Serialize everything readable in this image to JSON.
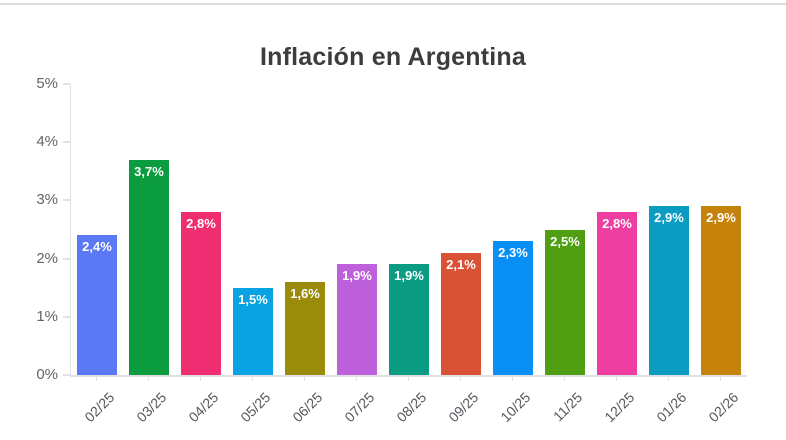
{
  "chart_data": {
    "type": "bar",
    "title": "Inflación en Argentina",
    "xlabel": "",
    "ylabel": "",
    "categories": [
      "02/25",
      "03/25",
      "04/25",
      "05/25",
      "06/25",
      "07/25",
      "08/25",
      "09/25",
      "10/25",
      "11/25",
      "12/25",
      "01/26",
      "02/26"
    ],
    "values": [
      2.4,
      3.7,
      2.8,
      1.5,
      1.6,
      1.9,
      1.9,
      2.1,
      2.3,
      2.5,
      2.8,
      2.9,
      2.9
    ],
    "value_labels": [
      "2,4%",
      "3,7%",
      "2,8%",
      "1,5%",
      "1,6%",
      "1,9%",
      "1,9%",
      "2,1%",
      "2,3%",
      "2,5%",
      "2,8%",
      "2,9%",
      "2,9%"
    ],
    "bar_colors": [
      "#5b78f5",
      "#0a9c3f",
      "#ef2e71",
      "#09a3e3",
      "#9a8b0b",
      "#be5fdc",
      "#0b9c83",
      "#d95235",
      "#0a8ff5",
      "#509e12",
      "#ee3ea2",
      "#0b9cc2",
      "#c6830c"
    ],
    "ylim": [
      0,
      5
    ],
    "yticks": [
      0,
      1,
      2,
      3,
      4,
      5
    ],
    "ytick_labels": [
      "0%",
      "1%",
      "2%",
      "3%",
      "4%",
      "5%"
    ],
    "grid": false,
    "legend": "none",
    "value_label_color": "#ffffff",
    "axis_color": "#dfdfe4",
    "tick_label_color": "#56565e",
    "title_color": "#3d3d3d"
  }
}
